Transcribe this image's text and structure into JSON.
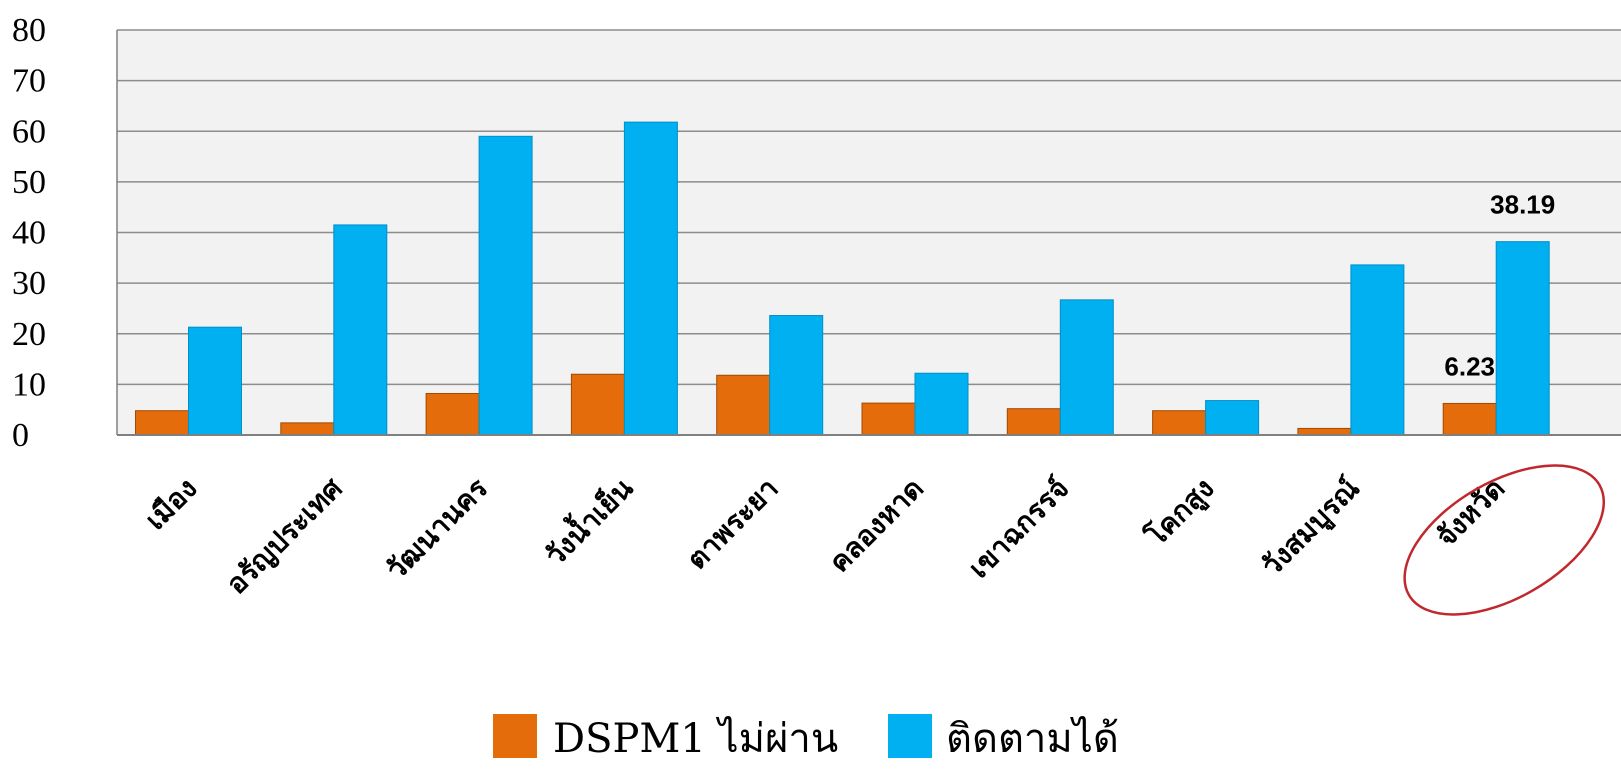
{
  "chart_data": {
    "type": "bar",
    "title": "",
    "xlabel": "",
    "ylabel": "",
    "ylim": [
      0,
      80
    ],
    "yticks": [
      "0",
      "10",
      "20",
      "30",
      "40",
      "50",
      "60",
      "70",
      "80"
    ],
    "grid": true,
    "legend_position": "bottom",
    "categories": [
      "เมือง",
      "อรัญประเทศ",
      "วัฒนานคร",
      "วังน้ำเย็น",
      "ตาพระยา",
      "คลองหาด",
      "เขาฉกรรจ์",
      "โคกสูง",
      "วังสมบูรณ์",
      "จังหวัด"
    ],
    "series": [
      {
        "name": "DSPM1 ไม่ผ่าน",
        "color": "#E46C0A",
        "values": [
          4.8,
          2.4,
          8.2,
          12.0,
          11.8,
          6.3,
          5.2,
          4.8,
          1.3,
          6.23
        ]
      },
      {
        "name": "ติดตามได้",
        "color": "#00B0F0",
        "values": [
          21.3,
          41.5,
          59.0,
          61.8,
          23.6,
          12.2,
          26.7,
          6.8,
          33.6,
          38.19
        ]
      }
    ],
    "data_labels": [
      {
        "series": 0,
        "category": 9,
        "text": "6.23"
      },
      {
        "series": 1,
        "category": 9,
        "text": "38.19"
      }
    ],
    "highlight": {
      "category": 9,
      "shape": "ellipse",
      "color": "#C0282D"
    }
  }
}
